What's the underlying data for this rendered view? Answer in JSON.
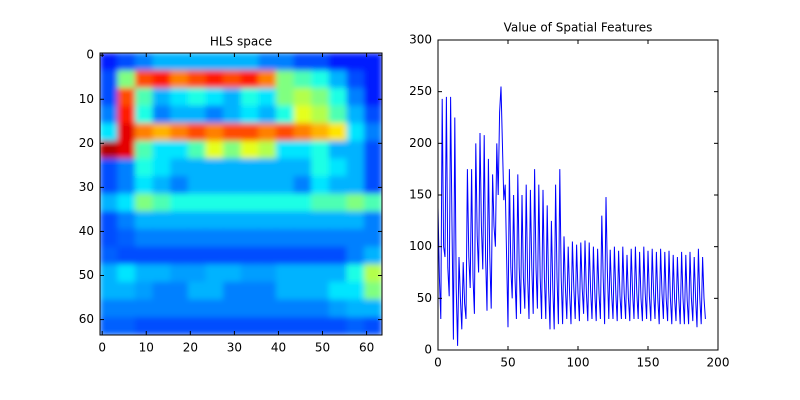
{
  "chart_data": [
    {
      "type": "heatmap",
      "title": "HLS space",
      "colormap": "jet",
      "z": [
        [
          0.15,
          0.2,
          0.25,
          0.3,
          0.3,
          0.3,
          0.3,
          0.3,
          0.3,
          0.25,
          0.25,
          0.2,
          0.2,
          0.15,
          0.15,
          0.15
        ],
        [
          0.2,
          0.5,
          0.8,
          0.85,
          0.75,
          0.8,
          0.85,
          0.8,
          0.85,
          0.75,
          0.5,
          0.45,
          0.4,
          0.3,
          0.2,
          0.15
        ],
        [
          0.2,
          0.8,
          0.45,
          0.3,
          0.35,
          0.4,
          0.35,
          0.3,
          0.4,
          0.35,
          0.5,
          0.55,
          0.5,
          0.4,
          0.25,
          0.15
        ],
        [
          0.25,
          0.85,
          0.4,
          0.25,
          0.3,
          0.3,
          0.25,
          0.3,
          0.35,
          0.3,
          0.4,
          0.6,
          0.55,
          0.45,
          0.3,
          0.2
        ],
        [
          0.35,
          0.9,
          0.75,
          0.7,
          0.75,
          0.8,
          0.75,
          0.8,
          0.8,
          0.75,
          0.8,
          0.75,
          0.7,
          0.65,
          0.35,
          0.25
        ],
        [
          0.95,
          0.9,
          0.45,
          0.35,
          0.35,
          0.45,
          0.6,
          0.5,
          0.6,
          0.55,
          0.35,
          0.35,
          0.4,
          0.3,
          0.3,
          0.2
        ],
        [
          0.2,
          0.25,
          0.4,
          0.35,
          0.3,
          0.3,
          0.3,
          0.3,
          0.3,
          0.3,
          0.3,
          0.3,
          0.4,
          0.35,
          0.3,
          0.2
        ],
        [
          0.2,
          0.25,
          0.35,
          0.3,
          0.25,
          0.3,
          0.3,
          0.3,
          0.3,
          0.3,
          0.3,
          0.25,
          0.35,
          0.3,
          0.3,
          0.2
        ],
        [
          0.3,
          0.35,
          0.5,
          0.45,
          0.4,
          0.4,
          0.4,
          0.4,
          0.4,
          0.4,
          0.4,
          0.4,
          0.45,
          0.45,
          0.5,
          0.45
        ],
        [
          0.2,
          0.25,
          0.3,
          0.3,
          0.3,
          0.3,
          0.3,
          0.3,
          0.3,
          0.3,
          0.3,
          0.3,
          0.3,
          0.3,
          0.3,
          0.25
        ],
        [
          0.2,
          0.22,
          0.25,
          0.25,
          0.25,
          0.25,
          0.25,
          0.25,
          0.25,
          0.25,
          0.25,
          0.25,
          0.25,
          0.25,
          0.25,
          0.25
        ],
        [
          0.22,
          0.2,
          0.2,
          0.2,
          0.2,
          0.2,
          0.2,
          0.2,
          0.2,
          0.2,
          0.2,
          0.2,
          0.2,
          0.2,
          0.25,
          0.3
        ],
        [
          0.3,
          0.35,
          0.3,
          0.3,
          0.28,
          0.28,
          0.3,
          0.3,
          0.28,
          0.28,
          0.3,
          0.3,
          0.3,
          0.3,
          0.4,
          0.55
        ],
        [
          0.3,
          0.3,
          0.28,
          0.25,
          0.25,
          0.3,
          0.3,
          0.25,
          0.25,
          0.25,
          0.3,
          0.3,
          0.3,
          0.35,
          0.35,
          0.5
        ],
        [
          0.25,
          0.25,
          0.25,
          0.25,
          0.25,
          0.25,
          0.25,
          0.25,
          0.25,
          0.25,
          0.25,
          0.25,
          0.25,
          0.28,
          0.3,
          0.3
        ],
        [
          0.22,
          0.22,
          0.2,
          0.2,
          0.2,
          0.2,
          0.2,
          0.2,
          0.2,
          0.2,
          0.2,
          0.2,
          0.2,
          0.2,
          0.22,
          0.2
        ]
      ],
      "xlim": [
        -0.5,
        63.5
      ],
      "ylim": [
        63.5,
        -0.5
      ],
      "xticks": [
        0,
        10,
        20,
        30,
        40,
        50,
        60
      ],
      "yticks": [
        0,
        10,
        20,
        30,
        40,
        50,
        60
      ]
    },
    {
      "type": "line",
      "title": "Value of Spatial Features",
      "color": "#0000ff",
      "x": [
        0,
        1,
        2,
        3,
        4,
        5,
        6,
        7,
        8,
        9,
        10,
        11,
        12,
        13,
        14,
        15,
        16,
        17,
        18,
        19,
        20,
        21,
        22,
        23,
        24,
        25,
        26,
        27,
        28,
        29,
        30,
        31,
        32,
        33,
        34,
        35,
        36,
        37,
        38,
        39,
        40,
        41,
        42,
        43,
        44,
        45,
        46,
        47,
        48,
        49,
        50,
        51,
        52,
        53,
        54,
        55,
        56,
        57,
        58,
        59,
        60,
        61,
        62,
        63,
        64,
        65,
        66,
        67,
        68,
        69,
        70,
        71,
        72,
        73,
        74,
        75,
        76,
        77,
        78,
        79,
        80,
        81,
        82,
        83,
        84,
        85,
        86,
        87,
        88,
        89,
        90,
        91,
        92,
        93,
        94,
        95,
        96,
        97,
        98,
        99,
        100,
        101,
        102,
        103,
        104,
        105,
        106,
        107,
        108,
        109,
        110,
        111,
        112,
        113,
        114,
        115,
        116,
        117,
        118,
        119,
        120,
        121,
        122,
        123,
        124,
        125,
        126,
        127,
        128,
        129,
        130,
        131,
        132,
        133,
        134,
        135,
        136,
        137,
        138,
        139,
        140,
        141,
        142,
        143,
        144,
        145,
        146,
        147,
        148,
        149,
        150,
        151,
        152,
        153,
        154,
        155,
        156,
        157,
        158,
        159,
        160,
        161,
        162,
        163,
        164,
        165,
        166,
        167,
        168,
        169,
        170,
        171,
        172,
        173,
        174,
        175,
        176,
        177,
        178,
        179,
        180,
        181,
        182,
        183,
        184,
        185,
        186,
        187,
        188,
        189,
        190,
        191
      ],
      "values": [
        138,
        70,
        30,
        243,
        100,
        90,
        245,
        80,
        52,
        245,
        120,
        10,
        225,
        60,
        4,
        90,
        50,
        20,
        85,
        45,
        30,
        175,
        90,
        60,
        175,
        70,
        35,
        200,
        110,
        75,
        210,
        120,
        78,
        208,
        90,
        38,
        185,
        90,
        40,
        170,
        120,
        100,
        200,
        150,
        230,
        255,
        200,
        145,
        160,
        90,
        22,
        175,
        80,
        50,
        150,
        70,
        30,
        170,
        80,
        35,
        150,
        70,
        40,
        160,
        70,
        30,
        155,
        80,
        35,
        175,
        80,
        40,
        160,
        70,
        30,
        155,
        70,
        30,
        140,
        60,
        20,
        125,
        60,
        20,
        160,
        70,
        25,
        175,
        70,
        25,
        110,
        60,
        30,
        100,
        55,
        25,
        105,
        60,
        30,
        102,
        55,
        28,
        104,
        60,
        35,
        106,
        55,
        28,
        104,
        58,
        30,
        100,
        55,
        28,
        98,
        55,
        30,
        130,
        70,
        25,
        148,
        75,
        30,
        97,
        55,
        30,
        100,
        55,
        28,
        96,
        52,
        30,
        100,
        55,
        30,
        92,
        50,
        28,
        98,
        55,
        30,
        100,
        55,
        30,
        95,
        50,
        28,
        100,
        55,
        30,
        96,
        52,
        28,
        98,
        55,
        30,
        95,
        50,
        25,
        98,
        55,
        30,
        95,
        50,
        28,
        96,
        50,
        25,
        92,
        50,
        28,
        90,
        50,
        25,
        95,
        50,
        25,
        92,
        48,
        25,
        95,
        50,
        28,
        90,
        50,
        22,
        98,
        50,
        25,
        90,
        50,
        30
      ],
      "xlim": [
        0,
        200
      ],
      "ylim": [
        0,
        300
      ],
      "xticks": [
        0,
        50,
        100,
        150,
        200
      ],
      "yticks": [
        0,
        50,
        100,
        150,
        200,
        250,
        300
      ]
    }
  ]
}
